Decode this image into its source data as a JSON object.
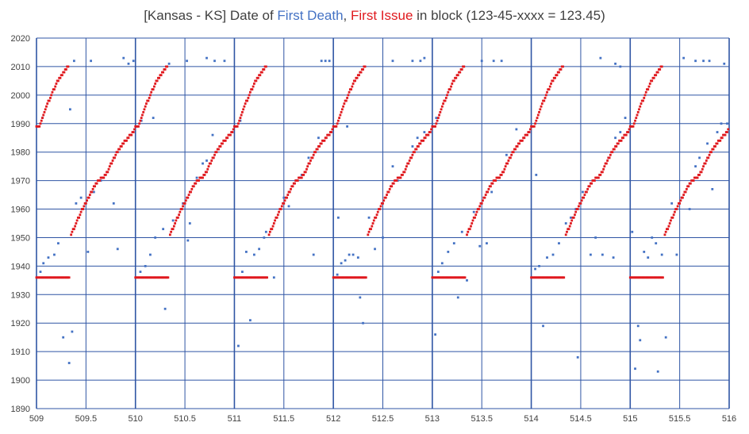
{
  "title": {
    "prefix": "[Kansas - KS] Date of ",
    "first_death": "First Death",
    "sep": ", ",
    "first_issue": "First Issue",
    "suffix": " in block (123-45-xxxx = 123.45)"
  },
  "colors": {
    "first_death": "#4472C4",
    "first_issue": "#E0191E",
    "grid": "#2F55A4",
    "text": "#404040"
  },
  "chart_data": {
    "type": "scatter",
    "title": "[Kansas - KS] Date of First Death, First Issue in block (123-45-xxxx = 123.45)",
    "xlim": [
      509,
      516
    ],
    "ylim": [
      1890,
      2020
    ],
    "x_ticks": [
      "509",
      "509.5",
      "510",
      "510.5",
      "511",
      "511.5",
      "512",
      "512.5",
      "513",
      "513.5",
      "514",
      "514.5",
      "515",
      "515.5",
      "516"
    ],
    "y_ticks": [
      "1890",
      "1900",
      "1910",
      "1920",
      "1930",
      "1940",
      "1950",
      "1960",
      "1970",
      "1980",
      "1990",
      "2000",
      "2010",
      "2020"
    ],
    "grid": true,
    "legend": "none",
    "pattern": {
      "blocks_start": [
        509,
        510,
        511,
        512,
        513,
        514,
        515
      ],
      "first_issue_flat": {
        "x_from": 0.0,
        "x_to": 0.33,
        "y": 1936
      },
      "first_issue_ramp": [
        [
          0.0,
          1989
        ],
        [
          0.03,
          1989
        ],
        [
          0.1,
          1996
        ],
        [
          0.2,
          2004
        ],
        [
          0.33,
          2011
        ]
      ],
      "first_issue_ramp2": [
        [
          0.35,
          1951
        ],
        [
          0.45,
          1959
        ],
        [
          0.6,
          1969
        ],
        [
          0.7,
          1972
        ],
        [
          0.8,
          1979
        ],
        [
          0.9,
          1984
        ],
        [
          1.0,
          1988
        ]
      ]
    },
    "series": [
      {
        "name": "First Death",
        "points": [
          [
            509.04,
            1938
          ],
          [
            509.07,
            1941
          ],
          [
            509.12,
            1943
          ],
          [
            509.18,
            1944
          ],
          [
            509.22,
            1948
          ],
          [
            509.27,
            1915
          ],
          [
            509.33,
            1906
          ],
          [
            509.36,
            1917
          ],
          [
            509.4,
            1962
          ],
          [
            509.45,
            1964
          ],
          [
            509.52,
            1945
          ],
          [
            509.58,
            1966
          ],
          [
            509.65,
            1970
          ],
          [
            509.78,
            1962
          ],
          [
            509.82,
            1946
          ],
          [
            509.88,
            2013
          ],
          [
            509.93,
            2011
          ],
          [
            509.98,
            2012
          ],
          [
            509.55,
            2012
          ],
          [
            509.38,
            2012
          ],
          [
            509.34,
            1995
          ],
          [
            509.06,
            1992
          ],
          [
            510.05,
            1938
          ],
          [
            510.1,
            1940
          ],
          [
            510.15,
            1944
          ],
          [
            510.2,
            1950
          ],
          [
            510.28,
            1953
          ],
          [
            510.3,
            1925
          ],
          [
            510.38,
            1956
          ],
          [
            510.48,
            1962
          ],
          [
            510.53,
            1949
          ],
          [
            510.55,
            1955
          ],
          [
            510.62,
            1971
          ],
          [
            510.68,
            1976
          ],
          [
            510.72,
            1977
          ],
          [
            510.78,
            1986
          ],
          [
            510.52,
            2012
          ],
          [
            510.72,
            2013
          ],
          [
            510.8,
            2012
          ],
          [
            510.9,
            2012
          ],
          [
            510.06,
            1991
          ],
          [
            510.18,
            1992
          ],
          [
            510.34,
            2011
          ],
          [
            511.04,
            1912
          ],
          [
            511.08,
            1938
          ],
          [
            511.12,
            1945
          ],
          [
            511.16,
            1921
          ],
          [
            511.2,
            1944
          ],
          [
            511.25,
            1946
          ],
          [
            511.32,
            1952
          ],
          [
            511.4,
            1936
          ],
          [
            511.5,
            1964
          ],
          [
            511.55,
            1961
          ],
          [
            511.62,
            1970
          ],
          [
            511.68,
            1972
          ],
          [
            511.75,
            1978
          ],
          [
            511.8,
            1944
          ],
          [
            511.85,
            1985
          ],
          [
            511.88,
            2012
          ],
          [
            511.92,
            2012
          ],
          [
            511.96,
            2012
          ],
          [
            511.06,
            1991
          ],
          [
            511.3,
            1950
          ],
          [
            512.04,
            1937
          ],
          [
            512.08,
            1941
          ],
          [
            512.12,
            1942
          ],
          [
            512.16,
            1944
          ],
          [
            512.2,
            1944
          ],
          [
            512.25,
            1943
          ],
          [
            512.27,
            1929
          ],
          [
            512.3,
            1920
          ],
          [
            512.36,
            1957
          ],
          [
            512.42,
            1946
          ],
          [
            512.5,
            1950
          ],
          [
            512.6,
            1975
          ],
          [
            512.65,
            1970
          ],
          [
            512.8,
            1982
          ],
          [
            512.85,
            1985
          ],
          [
            512.92,
            1987
          ],
          [
            512.6,
            2012
          ],
          [
            512.8,
            2012
          ],
          [
            512.88,
            2012
          ],
          [
            512.92,
            2013
          ],
          [
            512.14,
            1989
          ],
          [
            512.05,
            1957
          ],
          [
            513.03,
            1916
          ],
          [
            513.06,
            1938
          ],
          [
            513.1,
            1941
          ],
          [
            513.16,
            1945
          ],
          [
            513.22,
            1948
          ],
          [
            513.26,
            1929
          ],
          [
            513.3,
            1952
          ],
          [
            513.35,
            1935
          ],
          [
            513.42,
            1959
          ],
          [
            513.48,
            1947
          ],
          [
            513.55,
            1948
          ],
          [
            513.6,
            1966
          ],
          [
            513.75,
            1979
          ],
          [
            513.85,
            1988
          ],
          [
            513.5,
            2012
          ],
          [
            513.62,
            2012
          ],
          [
            513.7,
            2012
          ],
          [
            513.04,
            1992
          ],
          [
            514.04,
            1939
          ],
          [
            514.08,
            1940
          ],
          [
            514.12,
            1919
          ],
          [
            514.16,
            1943
          ],
          [
            514.22,
            1944
          ],
          [
            514.28,
            1948
          ],
          [
            514.35,
            1955
          ],
          [
            514.4,
            1957
          ],
          [
            514.45,
            1960
          ],
          [
            514.47,
            1908
          ],
          [
            514.52,
            1966
          ],
          [
            514.6,
            1944
          ],
          [
            514.65,
            1950
          ],
          [
            514.72,
            1944
          ],
          [
            514.78,
            1978
          ],
          [
            514.83,
            1943
          ],
          [
            514.85,
            1985
          ],
          [
            514.9,
            1987
          ],
          [
            514.95,
            1992
          ],
          [
            514.7,
            2013
          ],
          [
            514.85,
            2011
          ],
          [
            514.9,
            2010
          ],
          [
            514.05,
            1972
          ],
          [
            515.02,
            1952
          ],
          [
            515.05,
            1904
          ],
          [
            515.08,
            1919
          ],
          [
            515.1,
            1914
          ],
          [
            515.14,
            1945
          ],
          [
            515.18,
            1943
          ],
          [
            515.22,
            1950
          ],
          [
            515.26,
            1948
          ],
          [
            515.28,
            1903
          ],
          [
            515.32,
            1944
          ],
          [
            515.36,
            1915
          ],
          [
            515.42,
            1962
          ],
          [
            515.47,
            1944
          ],
          [
            515.52,
            1964
          ],
          [
            515.6,
            1960
          ],
          [
            515.66,
            1975
          ],
          [
            515.7,
            1978
          ],
          [
            515.78,
            1983
          ],
          [
            515.83,
            1967
          ],
          [
            515.88,
            1987
          ],
          [
            515.92,
            1990
          ],
          [
            515.98,
            1990
          ],
          [
            515.54,
            2013
          ],
          [
            515.66,
            2012
          ],
          [
            515.74,
            2012
          ],
          [
            515.8,
            2012
          ],
          [
            515.95,
            2011
          ]
        ]
      }
    ]
  }
}
